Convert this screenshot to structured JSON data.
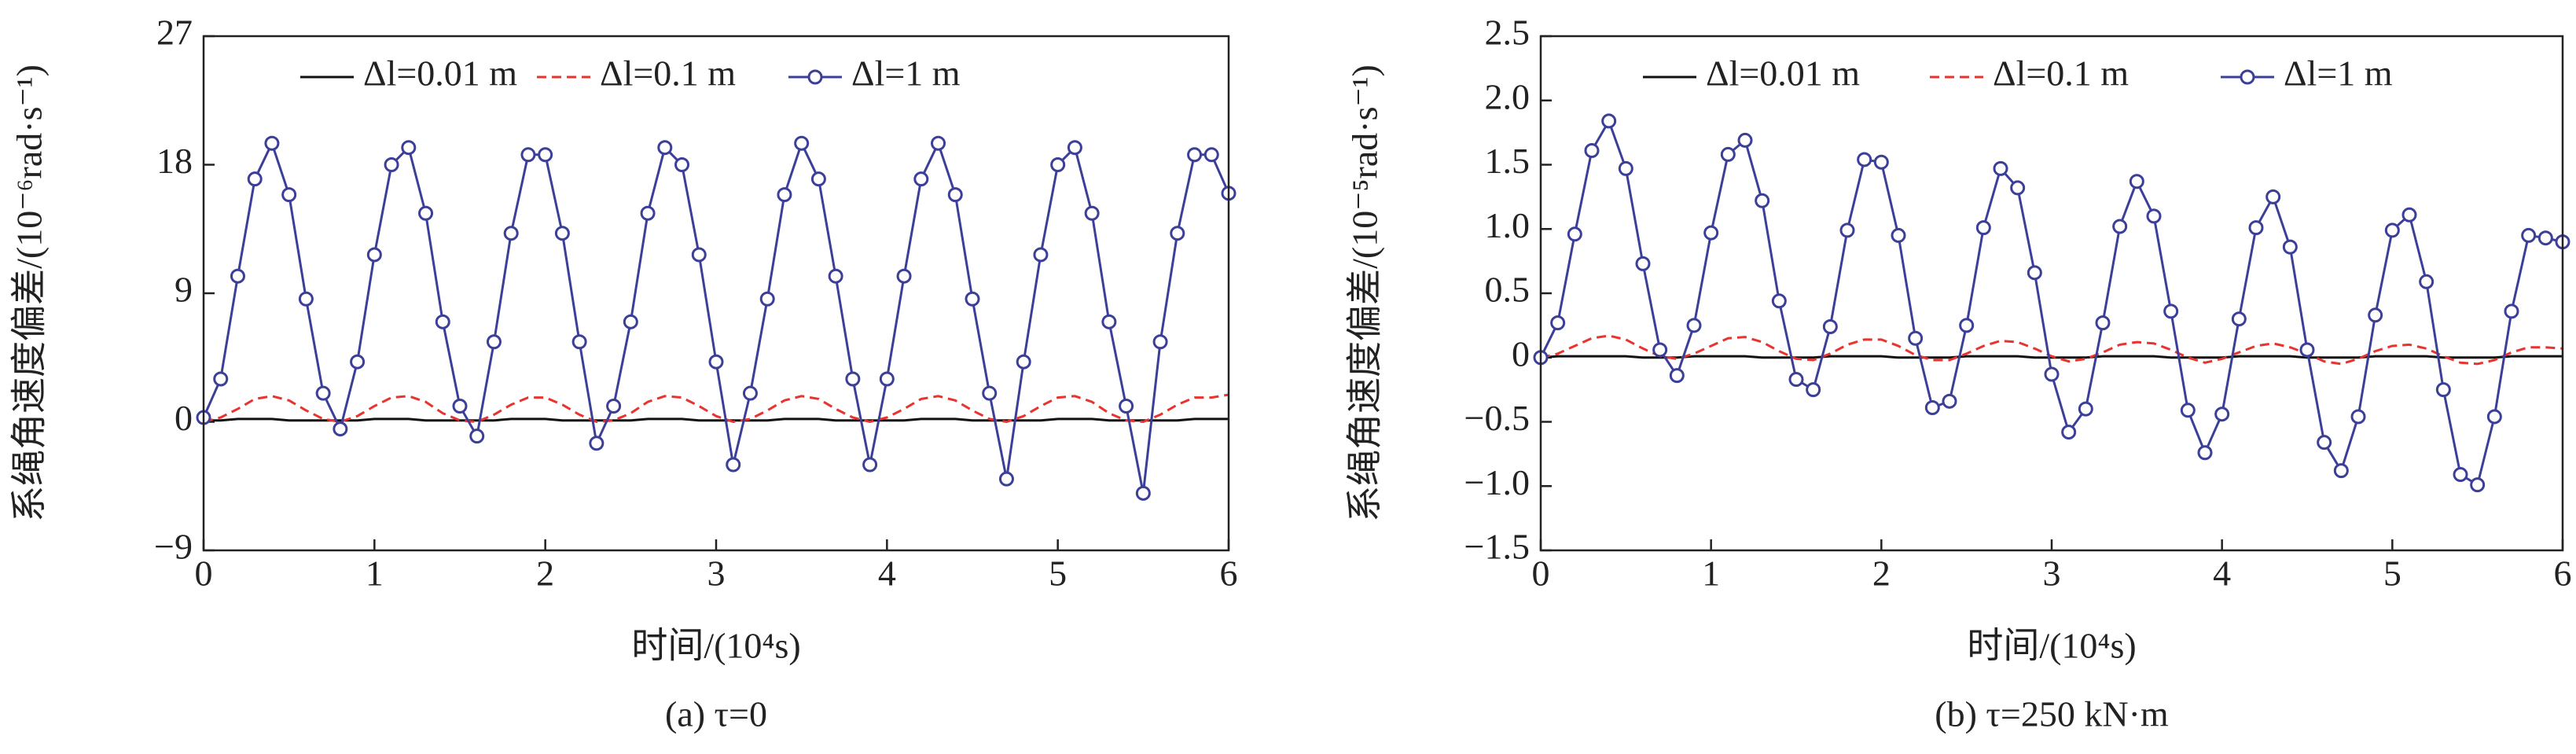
{
  "chart_data": [
    {
      "type": "line",
      "title": "(a) τ=0",
      "xlabel": "时间/(10⁴s)",
      "ylabel": "系绳角速度偏差/(10⁻⁶rad·s⁻¹)",
      "xlim": [
        0,
        6
      ],
      "xticks": [
        0,
        1,
        2,
        3,
        4,
        5,
        6
      ],
      "ylim": [
        -9,
        27
      ],
      "yticks": [
        {
          "value": -9,
          "label": "−9"
        },
        0,
        9,
        18,
        27
      ],
      "grid": false,
      "legend": "top",
      "x": [
        0,
        0.1,
        0.2,
        0.3,
        0.4,
        0.5,
        0.6,
        0.7,
        0.8,
        0.9,
        1.0,
        1.1,
        1.2,
        1.3,
        1.4,
        1.5,
        1.6,
        1.7,
        1.8,
        1.9,
        2.0,
        2.1,
        2.2,
        2.3,
        2.4,
        2.5,
        2.6,
        2.7,
        2.8,
        2.9,
        3.0,
        3.1,
        3.2,
        3.3,
        3.4,
        3.5,
        3.6,
        3.7,
        3.8,
        3.9,
        4.0,
        4.1,
        4.2,
        4.3,
        4.4,
        4.5,
        4.6,
        4.7,
        4.8,
        4.9,
        5.0,
        5.1,
        5.2,
        5.3,
        5.4,
        5.5,
        5.6,
        5.7,
        5.8,
        5.9,
        6.0
      ],
      "series": [
        {
          "name": "Δl=0.01 m",
          "color": "#111111",
          "dash": false,
          "marker": "none",
          "values": [
            0.1,
            0.1,
            0.2,
            0.2,
            0.2,
            0.1,
            0.1,
            0.1,
            0.1,
            0.1,
            0.2,
            0.2,
            0.2,
            0.1,
            0.1,
            0.1,
            0.1,
            0.1,
            0.2,
            0.2,
            0.2,
            0.1,
            0.1,
            0.1,
            0.1,
            0.1,
            0.2,
            0.2,
            0.2,
            0.1,
            0.1,
            0.1,
            0.1,
            0.1,
            0.2,
            0.2,
            0.2,
            0.1,
            0.1,
            0.1,
            0.1,
            0.1,
            0.2,
            0.2,
            0.2,
            0.1,
            0.1,
            0.1,
            0.1,
            0.1,
            0.2,
            0.2,
            0.2,
            0.1,
            0.1,
            0.1,
            0.1,
            0.1,
            0.2,
            0.2,
            0.2
          ]
        },
        {
          "name": "Δl=0.1 m",
          "color": "#e8332f",
          "dash": true,
          "marker": "none",
          "values": [
            0,
            0.3,
            0.9,
            1.6,
            1.8,
            1.5,
            0.8,
            0.2,
            0,
            0.4,
            1.1,
            1.7,
            1.8,
            1.4,
            0.6,
            0.1,
            0,
            0.5,
            1.2,
            1.7,
            1.7,
            1.2,
            0.5,
            0,
            0.1,
            0.6,
            1.4,
            1.8,
            1.7,
            1.1,
            0.4,
            0,
            0.2,
            0.8,
            1.5,
            1.8,
            1.6,
            0.9,
            0.3,
            0,
            0.3,
            0.9,
            1.6,
            1.8,
            1.5,
            0.8,
            0.2,
            0,
            0.4,
            1.1,
            1.7,
            1.8,
            1.4,
            0.6,
            0.1,
            0,
            0.5,
            1.2,
            1.7,
            1.7,
            1.9
          ]
        },
        {
          "name": "Δl=1 m",
          "color": "#3b3f98",
          "dash": false,
          "marker": "circle",
          "values": [
            0.3,
            3.0,
            10.2,
            17.0,
            19.5,
            15.9,
            8.6,
            2.0,
            -0.5,
            4.2,
            11.7,
            18.0,
            19.2,
            14.6,
            7.0,
            1.1,
            -1.0,
            5.6,
            13.2,
            18.7,
            18.7,
            13.2,
            5.6,
            -1.5,
            1.1,
            7.0,
            14.6,
            19.2,
            18.0,
            11.7,
            4.2,
            -3.0,
            2.0,
            8.6,
            15.9,
            19.5,
            17.0,
            10.2,
            3.0,
            -3.0,
            3.0,
            10.2,
            17.0,
            19.5,
            15.9,
            8.6,
            2.0,
            -4.0,
            4.2,
            11.7,
            18.0,
            19.2,
            14.6,
            7.0,
            1.1,
            -5.0,
            5.6,
            13.2,
            18.7,
            18.7,
            16.0
          ]
        }
      ]
    },
    {
      "type": "line",
      "title": "(b) τ=250 kN·m",
      "xlabel": "时间/(10⁴s)",
      "ylabel": "系绳角速度偏差/(10⁻⁵rad·s⁻¹)",
      "xlim": [
        0,
        6
      ],
      "xticks": [
        0,
        1,
        2,
        3,
        4,
        5,
        6
      ],
      "ylim": [
        -1.5,
        2.5
      ],
      "yticks": [
        {
          "value": -1.5,
          "label": "−1.5"
        },
        {
          "value": -1,
          "label": "−1.0"
        },
        {
          "value": -0.5,
          "label": "−0.5"
        },
        0,
        0.5,
        {
          "value": 1,
          "label": "1.0"
        },
        1.5,
        {
          "value": 2,
          "label": "2.0"
        },
        2.5
      ],
      "grid": false,
      "legend": "top",
      "x": [
        0,
        0.1,
        0.2,
        0.3,
        0.4,
        0.5,
        0.6,
        0.7,
        0.8,
        0.9,
        1.0,
        1.1,
        1.2,
        1.3,
        1.4,
        1.5,
        1.6,
        1.7,
        1.8,
        1.9,
        2.0,
        2.1,
        2.2,
        2.3,
        2.4,
        2.5,
        2.6,
        2.7,
        2.8,
        2.9,
        3.0,
        3.1,
        3.2,
        3.3,
        3.4,
        3.5,
        3.6,
        3.7,
        3.8,
        3.9,
        4.0,
        4.1,
        4.2,
        4.3,
        4.4,
        4.5,
        4.6,
        4.7,
        4.8,
        4.9,
        5.0,
        5.1,
        5.2,
        5.3,
        5.4,
        5.5,
        5.6,
        5.7,
        5.8,
        5.9,
        6.0
      ],
      "series": [
        {
          "name": "Δl=0.01 m",
          "color": "#111111",
          "dash": false,
          "marker": "none",
          "values": [
            0,
            0.01,
            0.01,
            0.01,
            0.01,
            0.01,
            0,
            0,
            0,
            0.01,
            0.01,
            0.01,
            0.01,
            0,
            0,
            0,
            0,
            0.01,
            0.01,
            0.01,
            0.01,
            0,
            0,
            0,
            0,
            0.01,
            0.01,
            0.01,
            0.01,
            0,
            0,
            0,
            0,
            0.01,
            0.01,
            0.01,
            0.01,
            0,
            0,
            0,
            0,
            0.01,
            0.01,
            0.01,
            0.01,
            0,
            0,
            0,
            0,
            0.01,
            0.01,
            0.01,
            0.01,
            0,
            0,
            0,
            0,
            0.01,
            0.01,
            0.01,
            0.01
          ]
        },
        {
          "name": "Δl=0.1 m",
          "color": "#e8332f",
          "dash": true,
          "marker": "none",
          "values": [
            0,
            0.03,
            0.09,
            0.15,
            0.17,
            0.14,
            0.07,
            0.01,
            -0.01,
            0.03,
            0.09,
            0.15,
            0.16,
            0.12,
            0.05,
            -0.01,
            -0.02,
            0.03,
            0.1,
            0.14,
            0.14,
            0.09,
            0.02,
            -0.02,
            -0.02,
            0.03,
            0.09,
            0.13,
            0.12,
            0.07,
            0.01,
            -0.03,
            -0.01,
            0.04,
            0.1,
            0.12,
            0.11,
            0.06,
            0,
            -0.04,
            -0.01,
            0.04,
            0.09,
            0.11,
            0.08,
            0.03,
            -0.03,
            -0.05,
            -0.01,
            0.05,
            0.09,
            0.1,
            0.07,
            0.01,
            -0.04,
            -0.05,
            -0.02,
            0.04,
            0.08,
            0.08,
            0.07
          ]
        },
        {
          "name": "Δl=1 m",
          "color": "#3b3f98",
          "dash": false,
          "marker": "circle",
          "values": [
            0,
            0.27,
            0.96,
            1.61,
            1.84,
            1.47,
            0.73,
            0.06,
            -0.14,
            0.25,
            0.97,
            1.58,
            1.69,
            1.22,
            0.44,
            -0.17,
            -0.25,
            0.24,
            0.99,
            1.54,
            1.52,
            0.95,
            0.15,
            -0.39,
            -0.34,
            0.25,
            1.01,
            1.47,
            1.32,
            0.66,
            -0.13,
            -0.58,
            -0.4,
            0.27,
            1.02,
            1.37,
            1.1,
            0.36,
            -0.41,
            -0.74,
            -0.44,
            0.3,
            1.01,
            1.25,
            0.86,
            0.06,
            -0.66,
            -0.88,
            -0.46,
            0.33,
            0.99,
            1.11,
            0.59,
            -0.25,
            -0.91,
            -0.99,
            -0.46,
            0.36,
            0.95,
            0.93,
            0.9
          ]
        }
      ]
    }
  ]
}
